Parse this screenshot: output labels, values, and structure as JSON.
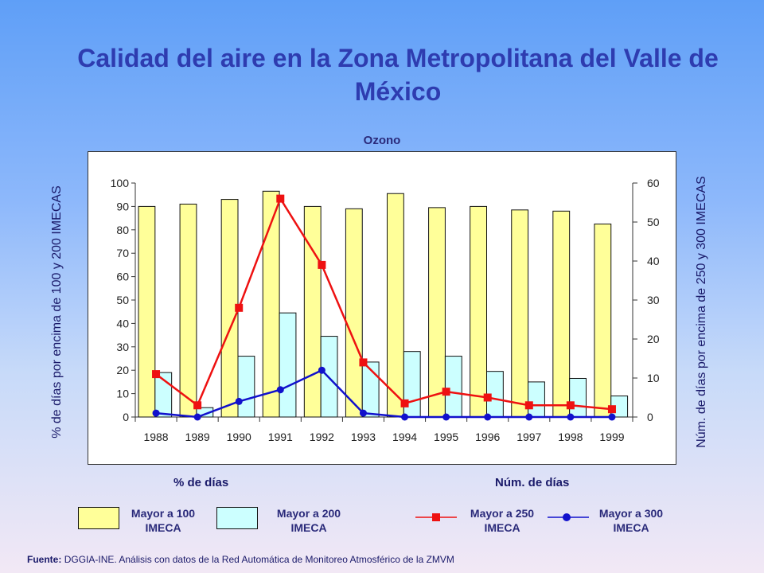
{
  "title": "Calidad del aire en la Zona Metropolitana del Valle de México",
  "chart_data": {
    "type": "bar",
    "title": "Ozono",
    "categories": [
      "1988",
      "1989",
      "1990",
      "1991",
      "1992",
      "1993",
      "1994",
      "1995",
      "1996",
      "1997",
      "1998",
      "1999"
    ],
    "ylabel_left": "% de días por encima de 100 y 200 IMECAS",
    "ylabel_right": "Núm. de días por encima de 250 y 300 IMECAS",
    "ylim_left": [
      0,
      100
    ],
    "yticks_left": [
      0,
      10,
      20,
      30,
      40,
      50,
      60,
      70,
      80,
      90,
      100
    ],
    "ylim_right": [
      0,
      60
    ],
    "yticks_right": [
      0,
      10,
      20,
      30,
      40,
      50,
      60
    ],
    "bar_series": [
      {
        "name": "Mayor a 100 IMECA",
        "axis": "left",
        "color": "#ffff99",
        "values": [
          90,
          91,
          93,
          96.5,
          90,
          89,
          95.5,
          89.5,
          90,
          88.5,
          88,
          82.5
        ]
      },
      {
        "name": "Mayor a 200 IMECA",
        "axis": "left",
        "color": "#ccffff",
        "values": [
          19,
          4,
          26,
          44.5,
          34.5,
          23.5,
          28,
          26,
          19.5,
          15,
          16.5,
          9
        ]
      }
    ],
    "line_series": [
      {
        "name": "Mayor a 250 IMECA",
        "axis": "right",
        "color": "#ee1111",
        "marker": "square",
        "values": [
          11,
          3,
          28,
          56,
          39,
          14,
          3.5,
          6.5,
          5,
          3,
          3,
          2
        ]
      },
      {
        "name": "Mayor a 300 IMECA",
        "axis": "right",
        "color": "#1111cc",
        "marker": "circle",
        "values": [
          1,
          0,
          4,
          7,
          12,
          1,
          0,
          0,
          0,
          0,
          0,
          0
        ]
      }
    ]
  },
  "group_labels": {
    "left": "% de días",
    "right": "Núm. de días"
  },
  "legend": [
    {
      "label": "Mayor a 100\nIMECA"
    },
    {
      "label": "Mayor a 200\nIMECA"
    },
    {
      "label": "Mayor a 250\nIMECA"
    },
    {
      "label": "Mayor a 300\nIMECA"
    }
  ],
  "source": {
    "prefix": "Fuente:",
    "text": "DGGIA-INE.  Análisis con datos de la Red Automática de Monitoreo Atmosférico de la ZMVM"
  }
}
